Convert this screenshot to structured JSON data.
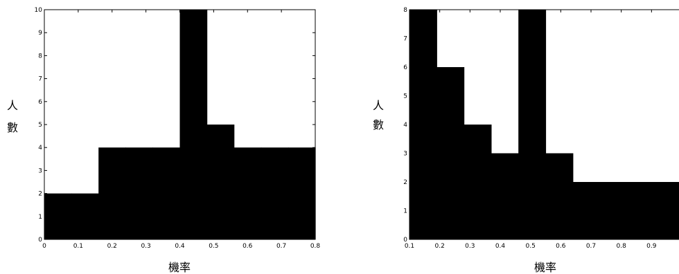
{
  "chart_data": [
    {
      "type": "bar",
      "title": "",
      "xlabel": "機率",
      "ylabel": [
        "人",
        "數"
      ],
      "xlim": [
        0,
        0.8
      ],
      "ylim": [
        0,
        10
      ],
      "xticks": [
        0,
        0.1,
        0.2,
        0.3,
        0.4,
        0.5,
        0.6,
        0.7,
        0.8
      ],
      "xtick_labels": [
        "0",
        "0.1",
        "0.2",
        "0.3",
        "0.4",
        "0.5",
        "0.6",
        "0.7",
        "0.8"
      ],
      "yticks": [
        0,
        1,
        2,
        3,
        4,
        5,
        6,
        7,
        8,
        9,
        10
      ],
      "ytick_labels": [
        "0",
        "1",
        "2",
        "3",
        "4",
        "5",
        "6",
        "7",
        "8",
        "9",
        "10"
      ],
      "bin_edges": [
        0,
        0.08,
        0.16,
        0.24,
        0.32,
        0.4,
        0.48,
        0.56,
        0.64,
        0.72,
        0.8
      ],
      "values": [
        2,
        2,
        4,
        4,
        4,
        10,
        5,
        4,
        4,
        4
      ],
      "bar_color": "#000000",
      "grid": false
    },
    {
      "type": "bar",
      "title": "",
      "xlabel": "機率",
      "ylabel": [
        "人",
        "數"
      ],
      "xlim": [
        0.1,
        1.0
      ],
      "ylim": [
        0,
        8
      ],
      "xticks": [
        0.1,
        0.2,
        0.3,
        0.4,
        0.5,
        0.6,
        0.7,
        0.8,
        0.9
      ],
      "xtick_labels": [
        "0.1",
        "0.2",
        "0.3",
        "0.4",
        "0.5",
        "0.6",
        "0.7",
        "0.8",
        "0.9"
      ],
      "yticks": [
        0,
        1,
        2,
        3,
        4,
        5,
        6,
        7,
        8
      ],
      "ytick_labels": [
        "0",
        "1",
        "2",
        "3",
        "4",
        "5",
        "6",
        "7",
        "8"
      ],
      "bin_edges": [
        0.1,
        0.19,
        0.28,
        0.37,
        0.46,
        0.55,
        0.64,
        0.73,
        0.82,
        0.91,
        1.0
      ],
      "values": [
        8,
        6,
        4,
        3,
        8,
        3,
        2,
        2,
        2,
        2
      ],
      "bar_color": "#000000",
      "grid": false
    }
  ]
}
